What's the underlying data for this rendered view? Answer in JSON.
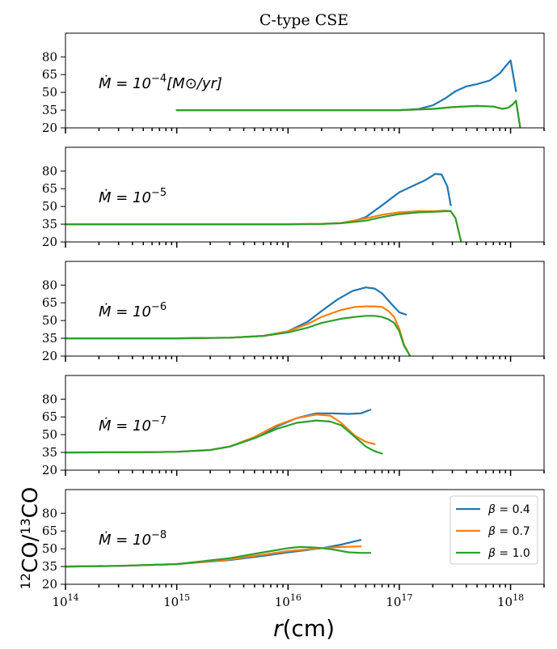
{
  "chart_data": {
    "type": "line",
    "title": "C-type CSE",
    "xlabel": "r(cm)",
    "ylabel": "12CO/13CO",
    "xscale": "log",
    "xlim": [
      100000000000000.0,
      2e+18
    ],
    "ylim": [
      20,
      100
    ],
    "yticks": [
      20,
      35,
      50,
      65,
      80
    ],
    "xticks": [
      {
        "value": 100000000000000.0,
        "base": "10",
        "exp": "14"
      },
      {
        "value": 1000000000000000.0,
        "base": "10",
        "exp": "15"
      },
      {
        "value": 1e+16,
        "base": "10",
        "exp": "16"
      },
      {
        "value": 1e+17,
        "base": "10",
        "exp": "17"
      },
      {
        "value": 1e+18,
        "base": "10",
        "exp": "18"
      }
    ],
    "legend": {
      "placement": "top-right of bottom panel",
      "entries": [
        {
          "name": "β = 0.4",
          "greek": "β",
          "eq": " = 0.4",
          "color": "#1f77b4"
        },
        {
          "name": "β = 0.7",
          "greek": "β",
          "eq": " = 0.7",
          "color": "#ff7f0e"
        },
        {
          "name": "β = 1.0",
          "greek": "β",
          "eq": " = 1.0",
          "color": "#2ca02c"
        }
      ]
    },
    "panels": [
      {
        "label": {
          "prefix": "Ṁ = 10",
          "exp": "−4",
          "suffix": "[M⊙/yr]"
        },
        "series": [
          {
            "name": "β = 0.4",
            "color": "#1f77b4",
            "points": [
              [
                1000000000000000.0,
                35
              ],
              [
                1e+17,
                35
              ],
              [
                1.5e+17,
                36
              ],
              [
                2e+17,
                39
              ],
              [
                2.6e+17,
                45
              ],
              [
                3.2e+17,
                51
              ],
              [
                4e+17,
                55
              ],
              [
                5e+17,
                57
              ],
              [
                6.5e+17,
                60
              ],
              [
                8e+17,
                66
              ],
              [
                9e+17,
                72
              ],
              [
                1e+18,
                77
              ],
              [
                1.12e+18,
                51
              ]
            ]
          },
          {
            "name": "β = 0.7",
            "color": "#ff7f0e",
            "points": [
              [
                1000000000000000.0,
                35
              ],
              [
                1e+17,
                35
              ],
              [
                2e+17,
                36
              ],
              [
                3e+17,
                37.5
              ],
              [
                5e+17,
                38.5
              ],
              [
                7e+17,
                38
              ],
              [
                8.5e+17,
                36
              ],
              [
                9.5e+17,
                37
              ],
              [
                1.05e+18,
                40
              ],
              [
                1.12e+18,
                43
              ],
              [
                1.22e+18,
                20
              ]
            ]
          },
          {
            "name": "β = 1.0",
            "color": "#2ca02c",
            "points": [
              [
                1000000000000000.0,
                35
              ],
              [
                1e+17,
                35
              ],
              [
                2e+17,
                36
              ],
              [
                3e+17,
                37.5
              ],
              [
                5e+17,
                38.5
              ],
              [
                7e+17,
                38
              ],
              [
                8.5e+17,
                36
              ],
              [
                9.5e+17,
                37
              ],
              [
                1.05e+18,
                40
              ],
              [
                1.12e+18,
                43
              ],
              [
                1.22e+18,
                20
              ]
            ]
          }
        ]
      },
      {
        "label": {
          "prefix": "Ṁ = 10",
          "exp": "−5",
          "suffix": ""
        },
        "series": [
          {
            "name": "β = 0.4",
            "color": "#1f77b4",
            "points": [
              [
                100000000000000.0,
                35
              ],
              [
                1e+16,
                35
              ],
              [
                2e+16,
                35.3
              ],
              [
                3e+16,
                36
              ],
              [
                4e+16,
                38
              ],
              [
                5e+16,
                41
              ],
              [
                7e+16,
                51
              ],
              [
                1e+17,
                62
              ],
              [
                1.3e+17,
                67
              ],
              [
                1.7e+17,
                72
              ],
              [
                2.1e+17,
                77.5
              ],
              [
                2.4e+17,
                77
              ],
              [
                2.7e+17,
                67
              ],
              [
                2.9e+17,
                51
              ]
            ]
          },
          {
            "name": "β = 0.7",
            "color": "#ff7f0e",
            "points": [
              [
                100000000000000.0,
                35
              ],
              [
                1e+16,
                35
              ],
              [
                2e+16,
                35.3
              ],
              [
                3e+16,
                36
              ],
              [
                5e+16,
                40
              ],
              [
                7e+16,
                43
              ],
              [
                1e+17,
                45
              ],
              [
                1.5e+17,
                46
              ],
              [
                2.1e+17,
                46
              ],
              [
                2.6e+17,
                46.5
              ],
              [
                2.9e+17,
                46
              ],
              [
                3.2e+17,
                40
              ],
              [
                3.6e+17,
                20
              ]
            ]
          },
          {
            "name": "β = 1.0",
            "color": "#2ca02c",
            "points": [
              [
                100000000000000.0,
                35
              ],
              [
                1e+16,
                35
              ],
              [
                2e+16,
                35.2
              ],
              [
                3e+16,
                35.8
              ],
              [
                5e+16,
                38
              ],
              [
                7e+16,
                41
              ],
              [
                1e+17,
                43.5
              ],
              [
                1.5e+17,
                45
              ],
              [
                2.1e+17,
                45.5
              ],
              [
                2.6e+17,
                46
              ],
              [
                2.9e+17,
                46
              ],
              [
                3.2e+17,
                40
              ],
              [
                3.6e+17,
                20
              ]
            ]
          }
        ]
      },
      {
        "label": {
          "prefix": "Ṁ = 10",
          "exp": "−6",
          "suffix": ""
        },
        "series": [
          {
            "name": "β = 0.4",
            "color": "#1f77b4",
            "points": [
              [
                100000000000000.0,
                35
              ],
              [
                1000000000000000.0,
                35
              ],
              [
                3000000000000000.0,
                35.5
              ],
              [
                6000000000000000.0,
                37
              ],
              [
                1e+16,
                41
              ],
              [
                1.5e+16,
                49
              ],
              [
                2e+16,
                58
              ],
              [
                2.8e+16,
                68
              ],
              [
                3.8e+16,
                75
              ],
              [
                5e+16,
                78
              ],
              [
                6e+16,
                77
              ],
              [
                7e+16,
                73
              ],
              [
                8.5e+16,
                64
              ],
              [
                1e+17,
                57
              ],
              [
                1.15e+17,
                55
              ]
            ]
          },
          {
            "name": "β = 0.7",
            "color": "#ff7f0e",
            "points": [
              [
                100000000000000.0,
                35
              ],
              [
                1000000000000000.0,
                35
              ],
              [
                3000000000000000.0,
                35.5
              ],
              [
                6000000000000000.0,
                37
              ],
              [
                1e+16,
                41
              ],
              [
                1.5e+16,
                47
              ],
              [
                2e+16,
                53
              ],
              [
                3e+16,
                59
              ],
              [
                4e+16,
                61.5
              ],
              [
                5e+16,
                62
              ],
              [
                6e+16,
                62
              ],
              [
                7e+16,
                61.5
              ],
              [
                8e+16,
                58
              ],
              [
                9e+16,
                53
              ],
              [
                1e+17,
                43
              ],
              [
                1.1e+17,
                30
              ],
              [
                1.25e+17,
                20
              ]
            ]
          },
          {
            "name": "β = 1.0",
            "color": "#2ca02c",
            "points": [
              [
                100000000000000.0,
                35
              ],
              [
                1000000000000000.0,
                35
              ],
              [
                3000000000000000.0,
                35.5
              ],
              [
                6000000000000000.0,
                37
              ],
              [
                1e+16,
                40
              ],
              [
                1.5e+16,
                44
              ],
              [
                2e+16,
                48
              ],
              [
                3e+16,
                51.5
              ],
              [
                4e+16,
                53
              ],
              [
                5e+16,
                54
              ],
              [
                6e+16,
                54
              ],
              [
                7e+16,
                53
              ],
              [
                8e+16,
                51
              ],
              [
                9e+16,
                48
              ],
              [
                1e+17,
                41
              ],
              [
                1.1e+17,
                29
              ],
              [
                1.25e+17,
                20
              ]
            ]
          }
        ]
      },
      {
        "label": {
          "prefix": "Ṁ = 10",
          "exp": "−7",
          "suffix": ""
        },
        "series": [
          {
            "name": "β = 0.4",
            "color": "#1f77b4",
            "points": [
              [
                100000000000000.0,
                35
              ],
              [
                500000000000000.0,
                35.2
              ],
              [
                1000000000000000.0,
                35.5
              ],
              [
                2000000000000000.0,
                37
              ],
              [
                3000000000000000.0,
                40
              ],
              [
                5000000000000000.0,
                47
              ],
              [
                8000000000000000.0,
                57
              ],
              [
                1.2e+16,
                64
              ],
              [
                1.8e+16,
                68
              ],
              [
                2.5e+16,
                68
              ],
              [
                3.5e+16,
                67.5
              ],
              [
                4.5e+16,
                68
              ],
              [
                5.5e+16,
                71
              ]
            ]
          },
          {
            "name": "β = 0.7",
            "color": "#ff7f0e",
            "points": [
              [
                100000000000000.0,
                35
              ],
              [
                500000000000000.0,
                35.2
              ],
              [
                1000000000000000.0,
                35.5
              ],
              [
                2000000000000000.0,
                37
              ],
              [
                3000000000000000.0,
                40
              ],
              [
                5000000000000000.0,
                48
              ],
              [
                8000000000000000.0,
                58
              ],
              [
                1.2e+16,
                64
              ],
              [
                1.8e+16,
                67
              ],
              [
                2.4e+16,
                66
              ],
              [
                3e+16,
                60
              ],
              [
                4e+16,
                49
              ],
              [
                5e+16,
                44
              ],
              [
                6e+16,
                42
              ]
            ]
          },
          {
            "name": "β = 1.0",
            "color": "#2ca02c",
            "points": [
              [
                100000000000000.0,
                35
              ],
              [
                500000000000000.0,
                35.2
              ],
              [
                1000000000000000.0,
                35.5
              ],
              [
                2000000000000000.0,
                37
              ],
              [
                3000000000000000.0,
                40
              ],
              [
                5000000000000000.0,
                47
              ],
              [
                8000000000000000.0,
                55
              ],
              [
                1.2e+16,
                60
              ],
              [
                1.8e+16,
                62
              ],
              [
                2.4e+16,
                61
              ],
              [
                3e+16,
                58
              ],
              [
                4e+16,
                48
              ],
              [
                5e+16,
                40
              ],
              [
                6e+16,
                36
              ],
              [
                7e+16,
                34
              ]
            ]
          }
        ]
      },
      {
        "label": {
          "prefix": "Ṁ = 10",
          "exp": "−8",
          "suffix": ""
        },
        "series": [
          {
            "name": "β = 0.4",
            "color": "#1f77b4",
            "points": [
              [
                100000000000000.0,
                35
              ],
              [
                300000000000000.0,
                35.5
              ],
              [
                1000000000000000.0,
                37
              ],
              [
                3000000000000000.0,
                40.5
              ],
              [
                6000000000000000.0,
                44
              ],
              [
                1e+16,
                47
              ],
              [
                1.5e+16,
                49
              ],
              [
                2e+16,
                50.5
              ],
              [
                3e+16,
                53.5
              ],
              [
                4.5e+16,
                57.5
              ]
            ]
          },
          {
            "name": "β = 0.7",
            "color": "#ff7f0e",
            "points": [
              [
                100000000000000.0,
                35
              ],
              [
                300000000000000.0,
                35.5
              ],
              [
                1000000000000000.0,
                37
              ],
              [
                3000000000000000.0,
                41
              ],
              [
                6000000000000000.0,
                45
              ],
              [
                1e+16,
                48
              ],
              [
                1.5e+16,
                49.5
              ],
              [
                2e+16,
                50.5
              ],
              [
                3e+16,
                51.5
              ],
              [
                4.5e+16,
                52
              ]
            ]
          },
          {
            "name": "β = 1.0",
            "color": "#2ca02c",
            "points": [
              [
                100000000000000.0,
                35
              ],
              [
                300000000000000.0,
                35.5
              ],
              [
                1000000000000000.0,
                37
              ],
              [
                3000000000000000.0,
                42
              ],
              [
                6000000000000000.0,
                47
              ],
              [
                1e+16,
                50.5
              ],
              [
                1.3e+16,
                51.5
              ],
              [
                1.8e+16,
                51
              ],
              [
                2.5e+16,
                49.5
              ],
              [
                3.5e+16,
                47
              ],
              [
                4.5e+16,
                46.5
              ],
              [
                5.5e+16,
                46.5
              ]
            ]
          }
        ]
      }
    ]
  }
}
